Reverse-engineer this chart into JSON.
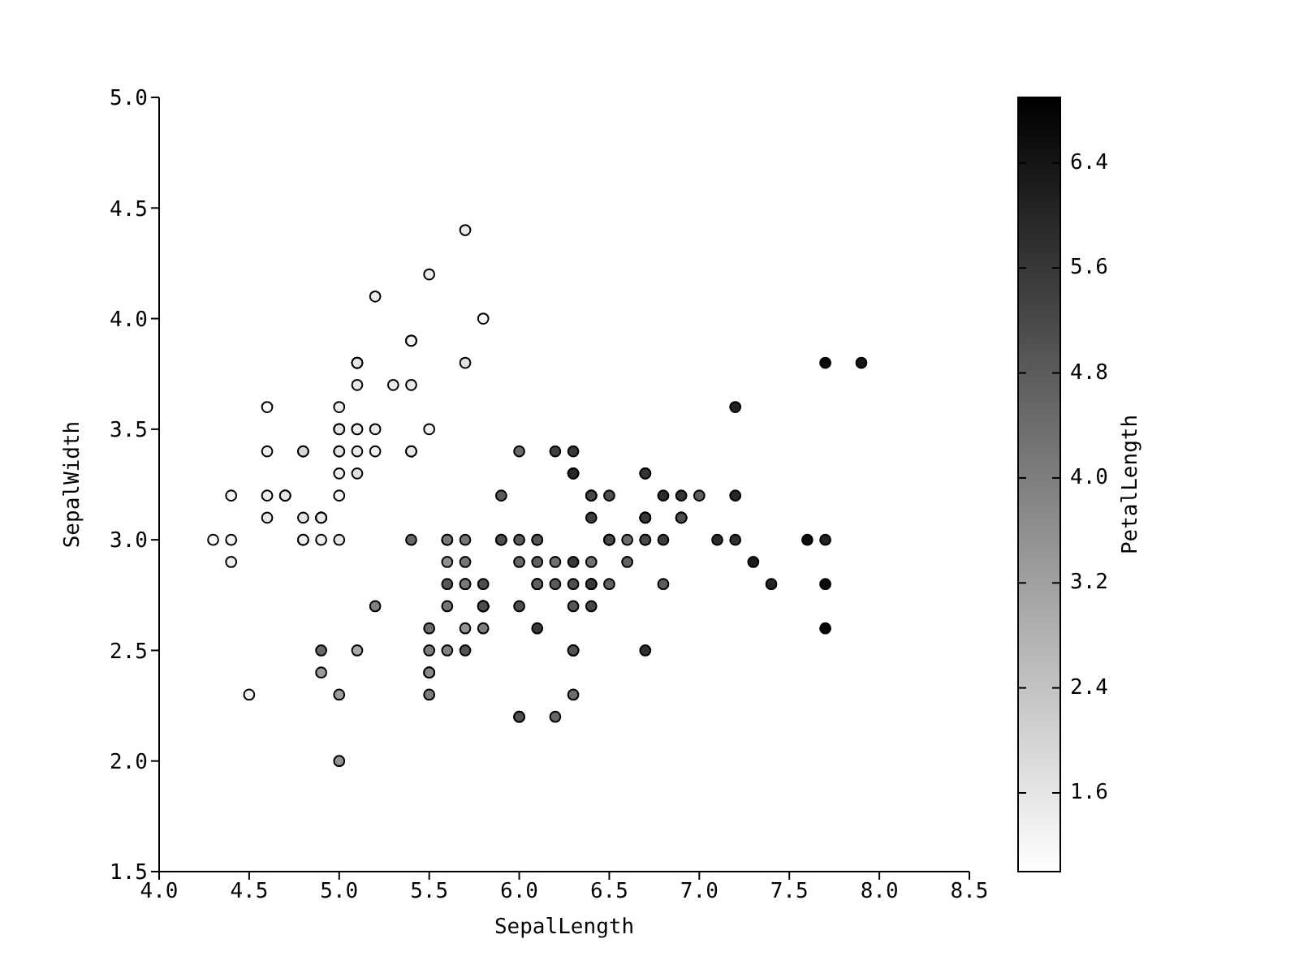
{
  "chart_data": {
    "type": "scatter",
    "xlabel": "SepalLength",
    "ylabel": "SepalWidth",
    "clabel": "PetalLength",
    "marker": "circle",
    "xlim": [
      4.0,
      8.5
    ],
    "xticks": [
      {
        "value": 4,
        "label": "4.0"
      },
      4.5,
      {
        "value": 5,
        "label": "5.0"
      },
      5.5,
      {
        "value": 6,
        "label": "6.0"
      },
      6.5,
      {
        "value": 7,
        "label": "7.0"
      },
      7.5,
      {
        "value": 8,
        "label": "8.0"
      },
      8.5
    ],
    "ylim": [
      1.5,
      5.0
    ],
    "yticks": [
      1.5,
      {
        "value": 2,
        "label": "2.0"
      },
      2.5,
      {
        "value": 3,
        "label": "3.0"
      },
      3.5,
      {
        "value": 4,
        "label": "4.0"
      },
      4.5,
      {
        "value": 5,
        "label": "5.0"
      }
    ],
    "clim": [
      1.0,
      6.9
    ],
    "cticks": [
      1.6,
      2.4,
      3.2,
      {
        "value": 4,
        "label": "4.0"
      },
      4.8,
      5.6,
      6.4
    ],
    "x": [
      5.1,
      4.9,
      4.7,
      4.6,
      5.0,
      5.4,
      4.6,
      5.0,
      4.4,
      4.9,
      5.4,
      4.8,
      4.8,
      4.3,
      5.8,
      5.7,
      5.4,
      5.1,
      5.7,
      5.1,
      5.4,
      5.1,
      4.6,
      5.1,
      4.8,
      5.0,
      5.0,
      5.2,
      5.2,
      4.7,
      4.8,
      5.4,
      5.2,
      5.5,
      4.9,
      5.0,
      5.5,
      4.9,
      4.4,
      5.1,
      5.0,
      4.5,
      4.4,
      5.0,
      5.1,
      4.8,
      5.1,
      4.6,
      5.3,
      5.0,
      7.0,
      6.4,
      6.9,
      5.5,
      6.5,
      5.7,
      6.3,
      4.9,
      6.6,
      5.2,
      5.0,
      5.9,
      6.0,
      6.1,
      5.6,
      6.7,
      5.6,
      5.8,
      6.2,
      5.6,
      5.9,
      6.1,
      6.3,
      6.1,
      6.4,
      6.6,
      6.8,
      6.7,
      6.0,
      5.7,
      5.5,
      5.5,
      5.8,
      6.0,
      5.4,
      6.0,
      6.7,
      6.3,
      5.6,
      5.5,
      5.5,
      6.1,
      5.8,
      5.0,
      5.6,
      5.7,
      5.7,
      6.2,
      5.1,
      5.7,
      6.3,
      5.8,
      7.1,
      6.3,
      6.5,
      7.6,
      4.9,
      7.3,
      6.7,
      7.2,
      6.5,
      6.4,
      6.8,
      5.7,
      5.8,
      6.4,
      6.5,
      7.7,
      7.7,
      6.0,
      6.9,
      5.6,
      7.7,
      6.3,
      6.7,
      7.2,
      6.2,
      6.1,
      6.4,
      7.2,
      7.4,
      7.9,
      6.4,
      6.3,
      6.1,
      7.7,
      6.3,
      6.4,
      6.0,
      6.9,
      6.7,
      6.9,
      5.8,
      6.8,
      6.7,
      6.7,
      6.3,
      6.5,
      6.2,
      5.9
    ],
    "values": [
      3.5,
      3.0,
      3.2,
      3.1,
      3.6,
      3.9,
      3.4,
      3.4,
      2.9,
      3.1,
      3.7,
      3.4,
      3.0,
      3.0,
      4.0,
      4.4,
      3.9,
      3.5,
      3.8,
      3.8,
      3.4,
      3.7,
      3.6,
      3.3,
      3.4,
      3.0,
      3.4,
      3.5,
      3.4,
      3.2,
      3.1,
      3.4,
      4.1,
      4.2,
      3.1,
      3.2,
      3.5,
      3.1,
      3.0,
      3.4,
      3.5,
      2.3,
      3.2,
      3.5,
      3.8,
      3.0,
      3.8,
      3.2,
      3.7,
      3.3,
      3.2,
      3.2,
      3.1,
      2.3,
      2.8,
      2.8,
      3.3,
      2.4,
      2.9,
      2.7,
      2.0,
      3.0,
      2.2,
      2.9,
      2.9,
      3.1,
      3.0,
      2.7,
      2.2,
      2.5,
      3.2,
      2.8,
      2.5,
      2.8,
      2.9,
      3.0,
      2.8,
      3.0,
      2.9,
      2.6,
      2.4,
      2.4,
      2.7,
      2.7,
      3.0,
      3.4,
      3.1,
      2.3,
      3.0,
      2.5,
      2.6,
      3.0,
      2.6,
      2.3,
      2.7,
      3.0,
      2.9,
      2.9,
      2.5,
      2.8,
      3.3,
      2.7,
      3.0,
      2.9,
      3.0,
      3.0,
      2.5,
      2.9,
      2.5,
      3.6,
      3.2,
      2.7,
      3.0,
      2.5,
      2.8,
      3.2,
      3.0,
      3.8,
      2.6,
      2.2,
      3.2,
      2.8,
      2.8,
      2.7,
      3.3,
      3.2,
      2.8,
      3.0,
      2.8,
      3.0,
      2.8,
      3.8,
      2.8,
      2.8,
      2.6,
      3.0,
      3.4,
      3.1,
      3.0,
      3.1,
      3.1,
      3.1,
      2.7,
      3.2,
      3.3,
      3.0,
      2.5,
      3.0,
      3.4,
      3.0
    ],
    "cvalues": [
      1.4,
      1.4,
      1.3,
      1.5,
      1.4,
      1.7,
      1.4,
      1.5,
      1.4,
      1.5,
      1.5,
      1.6,
      1.4,
      1.1,
      1.2,
      1.5,
      1.3,
      1.4,
      1.7,
      1.5,
      1.7,
      1.5,
      1.0,
      1.7,
      1.9,
      1.6,
      1.6,
      1.5,
      1.4,
      1.6,
      1.6,
      1.5,
      1.5,
      1.4,
      1.5,
      1.2,
      1.3,
      1.5,
      1.3,
      1.5,
      1.3,
      1.3,
      1.3,
      1.6,
      1.9,
      1.4,
      1.6,
      1.4,
      1.5,
      1.4,
      4.7,
      4.5,
      4.9,
      4.0,
      4.6,
      4.5,
      4.7,
      3.3,
      4.6,
      3.9,
      3.5,
      4.2,
      4.0,
      4.7,
      3.6,
      4.4,
      4.5,
      4.1,
      4.5,
      3.9,
      4.8,
      4.0,
      4.9,
      4.7,
      4.3,
      4.4,
      4.8,
      5.0,
      4.5,
      3.5,
      3.8,
      3.7,
      3.9,
      5.1,
      4.5,
      4.5,
      4.7,
      4.4,
      4.1,
      4.0,
      4.4,
      4.6,
      4.0,
      3.3,
      4.2,
      4.2,
      4.2,
      4.3,
      3.0,
      4.1,
      6.0,
      5.1,
      5.9,
      5.6,
      5.8,
      6.6,
      4.5,
      6.3,
      5.8,
      6.1,
      5.1,
      5.3,
      5.5,
      5.0,
      5.1,
      5.3,
      5.5,
      6.7,
      6.9,
      5.0,
      5.7,
      4.9,
      6.7,
      4.9,
      5.7,
      6.0,
      4.8,
      4.9,
      5.6,
      5.8,
      6.1,
      6.4,
      5.6,
      5.1,
      5.6,
      6.1,
      5.6,
      5.5,
      4.8,
      5.4,
      5.6,
      5.1,
      5.1,
      5.9,
      5.7,
      5.2,
      5.0,
      5.2,
      5.4,
      5.1
    ]
  }
}
